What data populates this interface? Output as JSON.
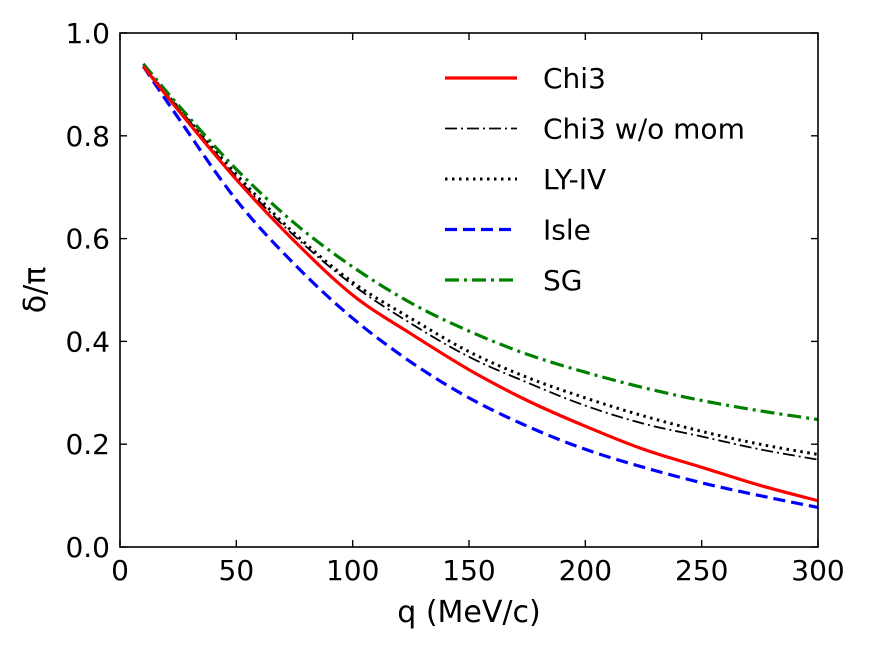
{
  "chart_data": {
    "type": "line",
    "title": "",
    "xlabel": "q (MeV/c)",
    "ylabel": "δ/π",
    "xlim": [
      0,
      300
    ],
    "ylim": [
      0.0,
      1.0
    ],
    "xticks": [
      "0",
      "50",
      "100",
      "150",
      "200",
      "250",
      "300"
    ],
    "yticks": [
      "0.0",
      "0.2",
      "0.4",
      "0.6",
      "0.8",
      "1.0"
    ],
    "grid": false,
    "legend_position": "top-right",
    "x": [
      10,
      25,
      50,
      75,
      100,
      125,
      150,
      175,
      200,
      225,
      250,
      275,
      300
    ],
    "series": [
      {
        "name": "Chi3",
        "color": "#ff0000",
        "style": "solid",
        "values": [
          0.935,
          0.85,
          0.715,
          0.595,
          0.49,
          0.415,
          0.345,
          0.285,
          0.235,
          0.19,
          0.155,
          0.12,
          0.09
        ]
      },
      {
        "name": "Chi3 w/o mom",
        "color": "#000000",
        "style": "dashdot-thin",
        "values": [
          0.935,
          0.855,
          0.72,
          0.605,
          0.51,
          0.435,
          0.37,
          0.32,
          0.275,
          0.24,
          0.215,
          0.19,
          0.17
        ]
      },
      {
        "name": "LY-IV",
        "color": "#000000",
        "style": "dotted",
        "values": [
          0.935,
          0.855,
          0.725,
          0.61,
          0.515,
          0.445,
          0.38,
          0.33,
          0.29,
          0.255,
          0.225,
          0.2,
          0.18
        ]
      },
      {
        "name": "Isle",
        "color": "#0000ff",
        "style": "dashed",
        "values": [
          0.935,
          0.835,
          0.675,
          0.55,
          0.445,
          0.36,
          0.29,
          0.235,
          0.19,
          0.155,
          0.125,
          0.1,
          0.077
        ]
      },
      {
        "name": "SG",
        "color": "#008000",
        "style": "dashdot",
        "values": [
          0.94,
          0.86,
          0.735,
          0.63,
          0.545,
          0.475,
          0.42,
          0.375,
          0.34,
          0.31,
          0.285,
          0.265,
          0.248
        ]
      }
    ]
  }
}
